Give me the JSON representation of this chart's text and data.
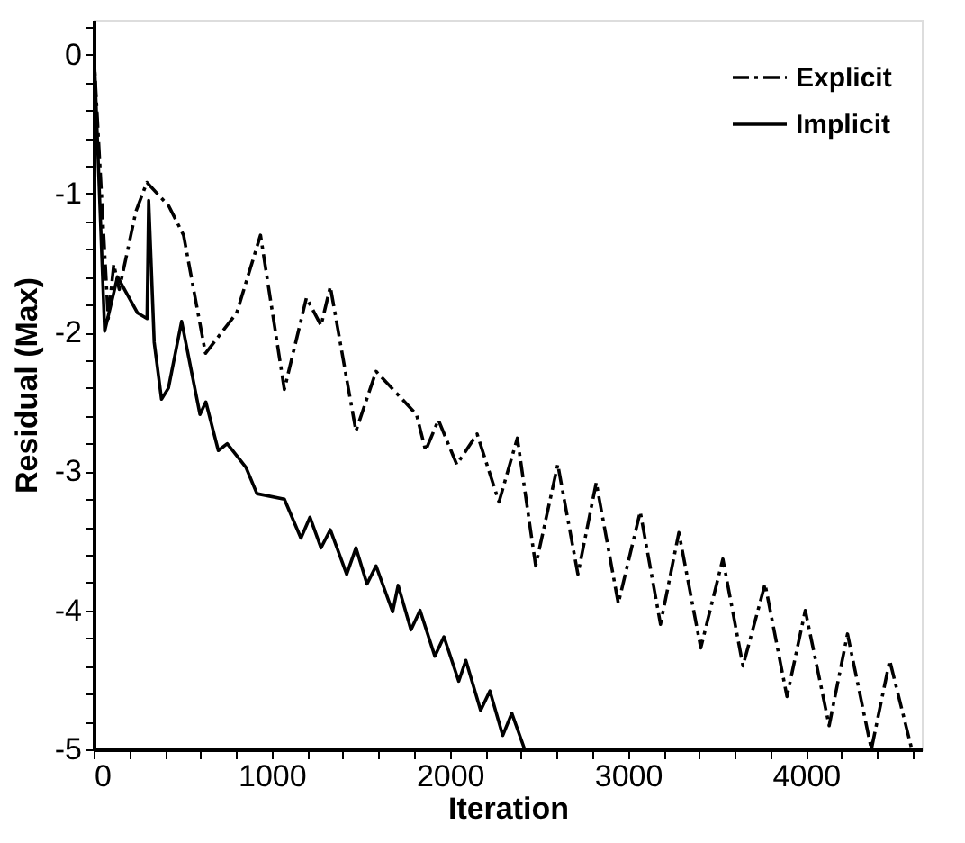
{
  "chart_data": {
    "type": "line",
    "xlabel": "Iteration",
    "ylabel": "Residual (Max)",
    "xlim": [
      0,
      4650
    ],
    "ylim": [
      -5,
      0.25
    ],
    "xticks": [
      0,
      {
        "value": 200,
        "label": null
      },
      {
        "value": 400,
        "label": null
      },
      {
        "value": 600,
        "label": null
      },
      {
        "value": 800,
        "label": null
      },
      1000,
      {
        "value": 1200,
        "label": null
      },
      {
        "value": 1400,
        "label": null
      },
      {
        "value": 1600,
        "label": null
      },
      {
        "value": 1800,
        "label": null
      },
      2000,
      {
        "value": 2200,
        "label": null
      },
      {
        "value": 2400,
        "label": null
      },
      {
        "value": 2600,
        "label": null
      },
      {
        "value": 2800,
        "label": null
      },
      3000,
      {
        "value": 3200,
        "label": null
      },
      {
        "value": 3400,
        "label": null
      },
      {
        "value": 3600,
        "label": null
      },
      {
        "value": 3800,
        "label": null
      },
      4000,
      {
        "value": 4200,
        "label": null
      },
      {
        "value": 4400,
        "label": null
      },
      {
        "value": 4600,
        "label": null
      }
    ],
    "yticks": [
      -5,
      {
        "value": -4.8,
        "label": null
      },
      {
        "value": -4.6,
        "label": null
      },
      {
        "value": -4.4,
        "label": null
      },
      {
        "value": -4.2,
        "label": null
      },
      -4,
      {
        "value": -3.8,
        "label": null
      },
      {
        "value": -3.6,
        "label": null
      },
      {
        "value": -3.4,
        "label": null
      },
      {
        "value": -3.2,
        "label": null
      },
      -3,
      {
        "value": -2.8,
        "label": null
      },
      {
        "value": -2.6,
        "label": null
      },
      {
        "value": -2.4,
        "label": null
      },
      {
        "value": -2.2,
        "label": null
      },
      -2,
      {
        "value": -1.8,
        "label": null
      },
      {
        "value": -1.6,
        "label": null
      },
      {
        "value": -1.4,
        "label": null
      },
      {
        "value": -1.2,
        "label": null
      },
      -1,
      {
        "value": -0.8,
        "label": null
      },
      {
        "value": -0.6,
        "label": null
      },
      {
        "value": -0.4,
        "label": null
      },
      {
        "value": -0.2,
        "label": null
      },
      0,
      {
        "value": 0.2,
        "label": null
      }
    ],
    "grid": false,
    "legend": "top right",
    "marker": "none",
    "series": [
      {
        "name": "Explicit",
        "color": "#000000",
        "line_style": "dashdot",
        "x": [
          0,
          82,
          113,
          144,
          237,
          299,
          422,
          505,
          628,
          803,
          937,
          1071,
          1195,
          1277,
          1329,
          1473,
          1586,
          1813,
          1864,
          1936,
          2039,
          2153,
          2276,
          2379,
          2482,
          2606,
          2719,
          2822,
          2946,
          3069,
          3183,
          3286,
          3409,
          3533,
          3646,
          3770,
          3893,
          3996,
          4130,
          4233,
          4367,
          4470,
          4594
        ],
        "values": [
          0.03,
          -1.9,
          -1.51,
          -1.69,
          -1.13,
          -0.92,
          -1.09,
          -1.3,
          -2.15,
          -1.86,
          -1.3,
          -2.41,
          -1.75,
          -1.95,
          -1.67,
          -2.71,
          -2.28,
          -2.59,
          -2.85,
          -2.63,
          -2.95,
          -2.73,
          -3.22,
          -2.76,
          -3.68,
          -2.95,
          -3.74,
          -3.08,
          -3.95,
          -3.29,
          -4.1,
          -3.44,
          -4.27,
          -3.63,
          -4.4,
          -3.81,
          -4.62,
          -4.0,
          -4.83,
          -4.17,
          -5.0,
          -4.36,
          -5.0
        ]
      },
      {
        "name": "Implicit",
        "color": "#000000",
        "line_style": "solid",
        "x": [
          0,
          62,
          134,
          247,
          300,
          309,
          340,
          381,
          420,
          494,
          597,
          630,
          700,
          750,
          855,
          917,
          1071,
          1164,
          1215,
          1277,
          1329,
          1421,
          1473,
          1535,
          1586,
          1679,
          1710,
          1782,
          1833,
          1916,
          1967,
          2050,
          2090,
          2173,
          2225,
          2297,
          2348,
          2420
        ],
        "values": [
          0.1,
          -1.99,
          -1.6,
          -1.86,
          -1.9,
          -1.05,
          -2.07,
          -2.48,
          -2.4,
          -1.92,
          -2.59,
          -2.5,
          -2.85,
          -2.8,
          -2.97,
          -3.16,
          -3.2,
          -3.48,
          -3.33,
          -3.55,
          -3.42,
          -3.74,
          -3.55,
          -3.81,
          -3.68,
          -4.01,
          -3.82,
          -4.14,
          -4.0,
          -4.33,
          -4.19,
          -4.51,
          -4.36,
          -4.72,
          -4.58,
          -4.9,
          -4.74,
          -5.0
        ]
      }
    ]
  }
}
